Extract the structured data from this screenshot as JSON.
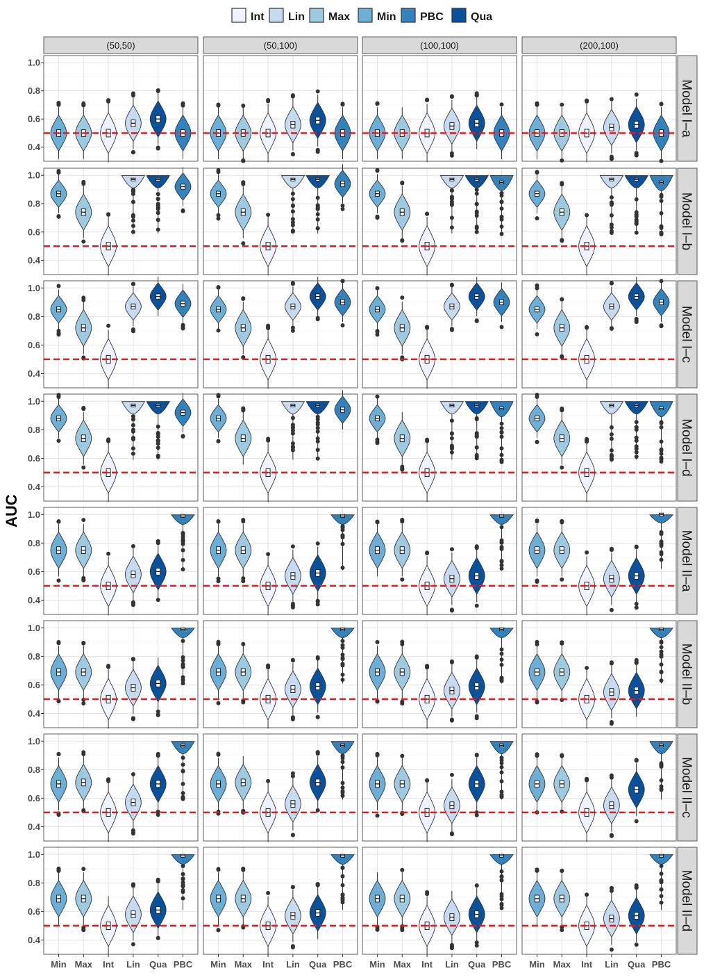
{
  "chart_data": {
    "type": "violin",
    "ylabel": "AUC",
    "ylim": [
      0.3,
      1.05
    ],
    "y_ticks": [
      "0.4",
      "0.6",
      "0.8",
      "1.0"
    ],
    "y_tick_values": [
      0.4,
      0.6,
      0.8,
      1.0
    ],
    "reference_line": {
      "y": 0.5,
      "color": "#e41a1c",
      "style": "dashed"
    },
    "categories": [
      "Min",
      "Max",
      "Int",
      "Lin",
      "Qua",
      "PBC"
    ],
    "legend": {
      "position": "top",
      "entries": [
        {
          "name": "Int",
          "color": "#eff3ff"
        },
        {
          "name": "Lin",
          "color": "#c6dbef"
        },
        {
          "name": "Max",
          "color": "#9ecae1"
        },
        {
          "name": "Min",
          "color": "#6baed6"
        },
        {
          "name": "PBC",
          "color": "#3182bd"
        },
        {
          "name": "Qua",
          "color": "#08519c"
        }
      ]
    },
    "series_colors": {
      "Min": "#6baed6",
      "Max": "#9ecae1",
      "Int": "#eff3ff",
      "Lin": "#c6dbef",
      "Qua": "#08519c",
      "PBC": "#3182bd"
    },
    "columns": [
      "(50,50)",
      "(50,100)",
      "(100,100)",
      "(200,100)"
    ],
    "rows": [
      {
        "name": "Model I–a",
        "medians": [
          [
            0.5,
            0.5,
            0.5,
            0.57,
            0.6,
            0.5
          ],
          [
            0.5,
            0.5,
            0.5,
            0.56,
            0.59,
            0.5
          ],
          [
            0.5,
            0.5,
            0.5,
            0.55,
            0.57,
            0.5
          ],
          [
            0.5,
            0.5,
            0.5,
            0.54,
            0.56,
            0.5
          ]
        ]
      },
      {
        "name": "Model I–b",
        "medians": [
          [
            0.87,
            0.74,
            0.5,
            0.97,
            0.97,
            0.92
          ],
          [
            0.87,
            0.74,
            0.5,
            0.97,
            0.97,
            0.94
          ],
          [
            0.87,
            0.74,
            0.5,
            0.97,
            0.97,
            0.95
          ],
          [
            0.87,
            0.74,
            0.5,
            0.97,
            0.97,
            0.95
          ]
        ]
      },
      {
        "name": "Model I–c",
        "medians": [
          [
            0.85,
            0.72,
            0.5,
            0.87,
            0.94,
            0.89
          ],
          [
            0.85,
            0.72,
            0.5,
            0.87,
            0.94,
            0.9
          ],
          [
            0.85,
            0.72,
            0.5,
            0.87,
            0.94,
            0.9
          ],
          [
            0.85,
            0.72,
            0.5,
            0.87,
            0.94,
            0.9
          ]
        ]
      },
      {
        "name": "Model I–d",
        "medians": [
          [
            0.88,
            0.74,
            0.5,
            0.97,
            0.97,
            0.92
          ],
          [
            0.88,
            0.74,
            0.5,
            0.97,
            0.97,
            0.94
          ],
          [
            0.88,
            0.74,
            0.5,
            0.97,
            0.97,
            0.95
          ],
          [
            0.88,
            0.74,
            0.5,
            0.97,
            0.97,
            0.95
          ]
        ]
      },
      {
        "name": "Model II–a",
        "medians": [
          [
            0.75,
            0.75,
            0.5,
            0.58,
            0.6,
            0.99
          ],
          [
            0.75,
            0.75,
            0.5,
            0.57,
            0.59,
            0.99
          ],
          [
            0.75,
            0.75,
            0.5,
            0.55,
            0.57,
            0.99
          ],
          [
            0.75,
            0.75,
            0.5,
            0.55,
            0.57,
            1.0
          ]
        ]
      },
      {
        "name": "Model II–b",
        "medians": [
          [
            0.69,
            0.69,
            0.5,
            0.58,
            0.61,
            0.99
          ],
          [
            0.69,
            0.69,
            0.5,
            0.57,
            0.59,
            0.99
          ],
          [
            0.69,
            0.69,
            0.5,
            0.56,
            0.59,
            0.99
          ],
          [
            0.69,
            0.69,
            0.5,
            0.55,
            0.56,
            0.99
          ]
        ]
      },
      {
        "name": "Model II–c",
        "medians": [
          [
            0.7,
            0.71,
            0.5,
            0.57,
            0.7,
            0.97
          ],
          [
            0.7,
            0.71,
            0.5,
            0.56,
            0.71,
            0.97
          ],
          [
            0.7,
            0.7,
            0.5,
            0.55,
            0.7,
            0.97
          ],
          [
            0.7,
            0.7,
            0.5,
            0.55,
            0.66,
            0.97
          ]
        ]
      },
      {
        "name": "Model II–d",
        "medians": [
          [
            0.69,
            0.69,
            0.5,
            0.58,
            0.61,
            0.99
          ],
          [
            0.69,
            0.69,
            0.5,
            0.57,
            0.59,
            0.99
          ],
          [
            0.69,
            0.69,
            0.5,
            0.56,
            0.58,
            0.99
          ],
          [
            0.69,
            0.69,
            0.5,
            0.55,
            0.57,
            0.99
          ]
        ]
      }
    ]
  }
}
